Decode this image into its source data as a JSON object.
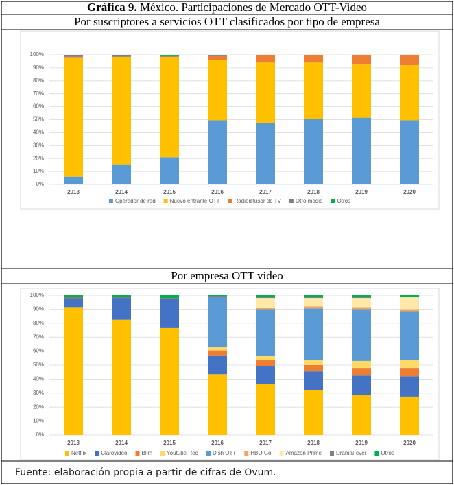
{
  "title_label": "Gráfica 9.",
  "title": "México. Participaciones de Mercado OTT-Video",
  "source": "Fuente: elaboración propia a partir de cifras de Ovum.",
  "chart_data": [
    {
      "type": "bar",
      "stacked": true,
      "title": "Por suscriptores a servicios OTT clasificados por tipo de empresa",
      "categories": [
        "2013",
        "2014",
        "2015",
        "2016",
        "2017",
        "2018",
        "2019",
        "2020"
      ],
      "ylim": [
        0,
        100
      ],
      "yticks": [
        {
          "value": 0,
          "label": "0%"
        },
        {
          "value": 10,
          "label": "10%"
        },
        {
          "value": 20,
          "label": "20%"
        },
        {
          "value": 30,
          "label": "30%"
        },
        {
          "value": 40,
          "label": "40%"
        },
        {
          "value": 50,
          "label": "50%"
        },
        {
          "value": 60,
          "label": "60%"
        },
        {
          "value": 70,
          "label": "70%"
        },
        {
          "value": 80,
          "label": "80%"
        },
        {
          "value": 90,
          "label": "90%"
        },
        {
          "value": 100,
          "label": "100%"
        }
      ],
      "grid": true,
      "legend": "bottom",
      "series": [
        {
          "name": "Operador de red",
          "color": "#5b9bd5",
          "values": [
            6,
            15,
            21,
            49.5,
            47.5,
            50.5,
            51.5,
            49.5
          ]
        },
        {
          "name": "Nuevo entrante OTT",
          "color": "#ffc000",
          "values": [
            92,
            83.5,
            77.5,
            46.5,
            46.5,
            43.5,
            41,
            42.5
          ]
        },
        {
          "name": "Radiodifusor de TV",
          "color": "#ed7d31",
          "values": [
            0.5,
            0,
            0,
            3,
            5.5,
            5.5,
            7,
            7.5
          ]
        },
        {
          "name": "Otro medio",
          "color": "#7f7f7f",
          "values": [
            1,
            1,
            0.5,
            0.5,
            0.5,
            0.5,
            0.5,
            0.5
          ]
        },
        {
          "name": "Otros",
          "color": "#00b050",
          "values": [
            0.5,
            0.5,
            1,
            0.5,
            0,
            0,
            0,
            0
          ]
        }
      ]
    },
    {
      "type": "bar",
      "stacked": true,
      "title": "Por empresa OTT video",
      "categories": [
        "2013",
        "2014",
        "2015",
        "2016",
        "2017",
        "2018",
        "2019",
        "2020"
      ],
      "ylim": [
        0,
        100
      ],
      "yticks": [
        {
          "value": 0,
          "label": "0%"
        },
        {
          "value": 10,
          "label": "10%"
        },
        {
          "value": 20,
          "label": "20%"
        },
        {
          "value": 30,
          "label": "30%"
        },
        {
          "value": 40,
          "label": "40%"
        },
        {
          "value": 50,
          "label": "50%"
        },
        {
          "value": 60,
          "label": "60%"
        },
        {
          "value": 70,
          "label": "70%"
        },
        {
          "value": 80,
          "label": "80%"
        },
        {
          "value": 90,
          "label": "90%"
        },
        {
          "value": 100,
          "label": "100%"
        }
      ],
      "grid": true,
      "legend": "bottom",
      "series": [
        {
          "name": "Netflix",
          "color": "#ffc000",
          "values": [
            91.5,
            82.5,
            76.5,
            43.5,
            36.5,
            32,
            28.5,
            27.5
          ]
        },
        {
          "name": "Clarovideo",
          "color": "#4472c4",
          "values": [
            6,
            15.5,
            21,
            13.5,
            13,
            13.5,
            14,
            14.5
          ]
        },
        {
          "name": "Blim",
          "color": "#ed7d31",
          "values": [
            0,
            0,
            0,
            3.5,
            4,
            4.5,
            5.5,
            6
          ]
        },
        {
          "name": "Youtube Red",
          "color": "#ffd966",
          "values": [
            0,
            0,
            0,
            2.5,
            3,
            3.5,
            5,
            5.5
          ]
        },
        {
          "name": "Dish OTT",
          "color": "#5b9bd5",
          "values": [
            0,
            0,
            0,
            36,
            33.5,
            37,
            37,
            35
          ]
        },
        {
          "name": "HBO Go",
          "color": "#f4a460",
          "values": [
            0,
            0,
            0,
            0,
            1,
            1.5,
            1.5,
            1.5
          ]
        },
        {
          "name": "Amazon Prime",
          "color": "#ffe9a8",
          "values": [
            0,
            0,
            0,
            0,
            7,
            6,
            6.5,
            8.5
          ]
        },
        {
          "name": "DramaFever",
          "color": "#7f7f7f",
          "values": [
            1.5,
            1,
            0.5,
            0.5,
            0.5,
            0.5,
            0.5,
            0.5
          ]
        },
        {
          "name": "Otros",
          "color": "#00b050",
          "values": [
            1,
            1,
            2,
            0.5,
            1.5,
            1.5,
            1.5,
            1
          ]
        }
      ]
    }
  ]
}
